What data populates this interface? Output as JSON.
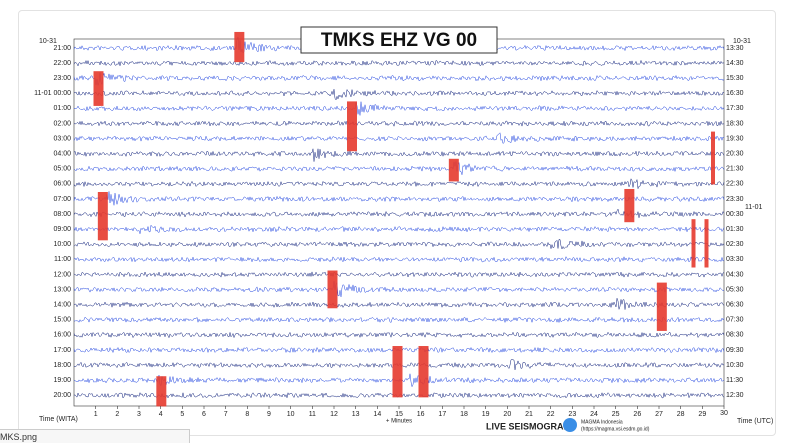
{
  "tab": {
    "filename": "MKS.png"
  },
  "seismogram": {
    "title": "TMKS EHZ VG 00",
    "left_date": "10-31",
    "left_labels": [
      "21:00",
      "22:00",
      "23:00",
      "11-01 00:00",
      "01:00",
      "02:00",
      "03:00",
      "04:00",
      "05:00",
      "06:00",
      "07:00",
      "08:00",
      "09:00",
      "10:00",
      "11:00",
      "12:00",
      "13:00",
      "14:00",
      "15:00",
      "16:00",
      "17:00",
      "18:00",
      "19:00",
      "20:00"
    ],
    "right_date": "10-31",
    "right_date_change": "11-01",
    "right_labels": [
      "13:30",
      "14:30",
      "15:30",
      "16:30",
      "17:30",
      "18:30",
      "19:30",
      "20:30",
      "21:30",
      "22:30",
      "23:30",
      "00:30",
      "01:30",
      "02:30",
      "03:30",
      "04:30",
      "05:30",
      "06:30",
      "07:30",
      "08:30",
      "09:30",
      "10:30",
      "11:30",
      "12:30"
    ],
    "x_ticks": [
      1,
      2,
      3,
      4,
      5,
      6,
      7,
      8,
      9,
      10,
      11,
      12,
      13,
      14,
      15,
      16,
      17,
      18,
      19,
      20,
      21,
      22,
      23,
      24,
      25,
      26,
      27,
      28,
      29,
      30
    ],
    "x_label_left": "Time (WITA)",
    "x_label_center": "+ Minutes",
    "x_label_right": "Time (UTC)",
    "footer": {
      "brand": "LIVE SEISMOGRAM",
      "org": "MAGMA Indonesia",
      "url": "(https://magma.vsi.esdm.go.id)"
    }
  }
}
